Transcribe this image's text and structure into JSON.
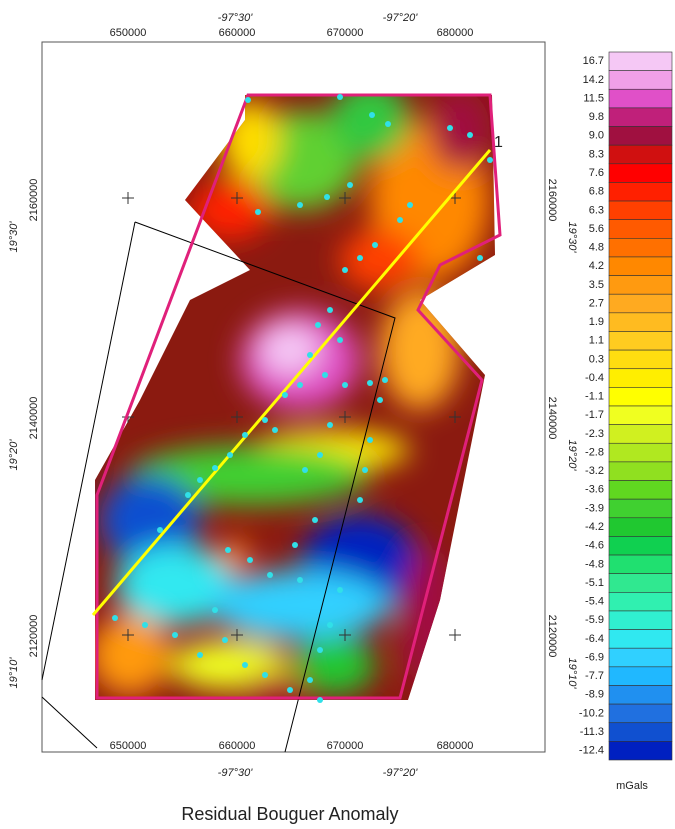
{
  "map": {
    "title": "Residual Bouguer Anomaly",
    "profile_label": "1",
    "easting_ticks": [
      "650000",
      "660000",
      "670000",
      "680000"
    ],
    "longitude_labels": [
      "-97°30'",
      "-97°20'"
    ],
    "northing_ticks": [
      "2160000",
      "2140000",
      "2120000"
    ],
    "latitude_labels": [
      "19°30'",
      "19°20'",
      "19°10'"
    ]
  },
  "colorbar": {
    "unit": "mGals",
    "labels": [
      "16.7",
      "14.2",
      "11.5",
      "9.8",
      "9.0",
      "8.3",
      "7.6",
      "6.8",
      "6.3",
      "5.6",
      "4.8",
      "4.2",
      "3.5",
      "2.7",
      "1.9",
      "1.1",
      "0.3",
      "-0.4",
      "-1.1",
      "-1.7",
      "-2.3",
      "-2.8",
      "-3.2",
      "-3.6",
      "-3.9",
      "-4.2",
      "-4.6",
      "-4.8",
      "-5.1",
      "-5.4",
      "-5.9",
      "-6.4",
      "-6.9",
      "-7.7",
      "-8.9",
      "-10.2",
      "-11.3",
      "-12.4"
    ],
    "colors": [
      "#f5c8f5",
      "#f0a0e8",
      "#e050c8",
      "#c0207a",
      "#a01040",
      "#d01010",
      "#ff0000",
      "#ff2000",
      "#ff4000",
      "#ff5a00",
      "#ff7000",
      "#ff8800",
      "#ff9a10",
      "#ffaa20",
      "#ffbb20",
      "#ffcc20",
      "#ffdd10",
      "#ffee00",
      "#ffff00",
      "#f0ff20",
      "#d0f020",
      "#b0e820",
      "#90e020",
      "#60d820",
      "#40d030",
      "#20c830",
      "#10d050",
      "#20e070",
      "#30e890",
      "#30f0b0",
      "#30f0d0",
      "#30e8f0",
      "#30d0ff",
      "#20b8ff",
      "#2090f0",
      "#2070e0",
      "#1050d0",
      "#0020c0"
    ]
  }
}
